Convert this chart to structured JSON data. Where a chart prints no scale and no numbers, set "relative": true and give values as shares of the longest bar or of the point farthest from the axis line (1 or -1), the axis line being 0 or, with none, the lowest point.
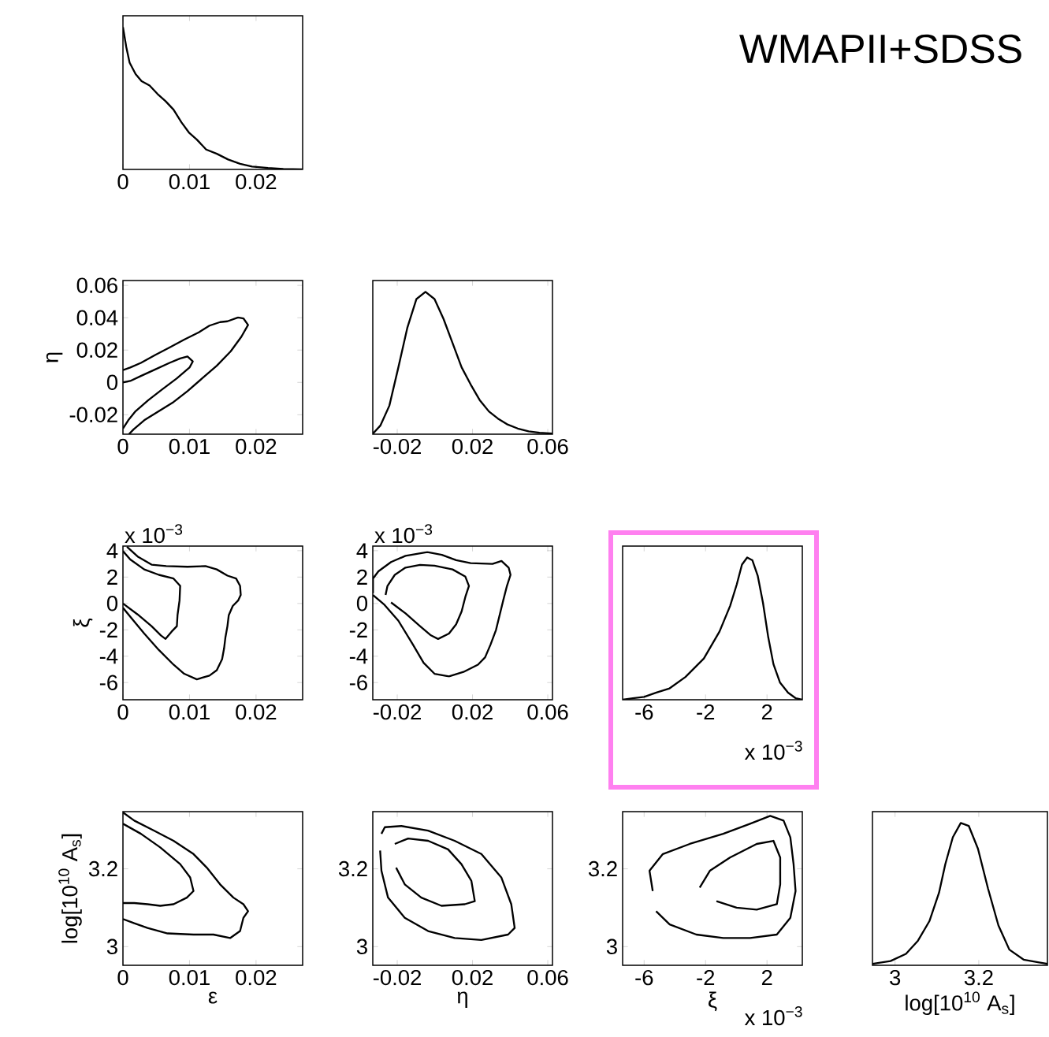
{
  "chart_data": [
    {
      "type": "line",
      "relative": true,
      "color": "#000000",
      "xlim": [
        0,
        0.027
      ],
      "xticks": [
        0,
        0.01,
        0.02
      ],
      "x": [
        0,
        0.0005,
        0.001,
        0.0019,
        0.0028,
        0.004,
        0.0052,
        0.0064,
        0.0076,
        0.0088,
        0.0099,
        0.0111,
        0.0125,
        0.0141,
        0.0158,
        0.0176,
        0.0194,
        0.0218,
        0.0241,
        0.027
      ],
      "values": [
        1,
        0.86,
        0.75,
        0.67,
        0.62,
        0.59,
        0.53,
        0.48,
        0.42,
        0.33,
        0.26,
        0.21,
        0.14,
        0.11,
        0.07,
        0.04,
        0.02,
        0.01,
        0.003,
        0
      ]
    },
    {
      "type": "other",
      "title": "WMAPII+SDSS"
    },
    {
      "type": "line",
      "ylabel": "η",
      "xlim": [
        0,
        0.027
      ],
      "ylim": [
        -0.032,
        0.063
      ],
      "xticks": [
        0,
        0.01,
        0.02
      ],
      "yticks": [
        -0.02,
        0,
        0.02,
        0.04,
        0.06
      ],
      "series": [
        {
          "color": "#000000",
          "x": [
            0,
            0.0011,
            0.0027,
            0.0049,
            0.007,
            0.0092,
            0.0114,
            0.013,
            0.0146,
            0.0157,
            0.0173,
            0.0181,
            0.0188,
            0.0178,
            0.0162,
            0.0141,
            0.0119,
            0.0097,
            0.0076,
            0.0054,
            0.0032,
            0.0016,
            0.0009
          ],
          "values": [
            0.0076,
            0.0092,
            0.0121,
            0.0171,
            0.0216,
            0.0265,
            0.031,
            0.0351,
            0.0373,
            0.0378,
            0.0402,
            0.0396,
            0.0355,
            0.0283,
            0.0193,
            0.0103,
            0.0025,
            -0.0054,
            -0.0121,
            -0.0178,
            -0.0234,
            -0.029,
            -0.032
          ]
        },
        {
          "color": "#000000",
          "x": [
            0,
            0.0011,
            0.0027,
            0.0049,
            0.007,
            0.0086,
            0.0097,
            0.0105,
            0.01,
            0.0081,
            0.0059,
            0.0038,
            0.0019,
            0.0008,
            0
          ],
          "values": [
            0,
            0.0009,
            0.004,
            0.0081,
            0.0121,
            0.0148,
            0.016,
            0.013,
            0.0092,
            0.0025,
            -0.0043,
            -0.011,
            -0.0178,
            -0.0234,
            -0.0285
          ]
        }
      ]
    },
    {
      "type": "line",
      "relative": true,
      "color": "#000000",
      "xlim": [
        -0.033,
        0.0625
      ],
      "xticks": [
        -0.02,
        0.02,
        0.06
      ],
      "x": [
        -0.0329,
        -0.029,
        -0.0242,
        -0.0194,
        -0.0146,
        -0.0098,
        -0.005,
        -0.0002,
        0.0046,
        0.0094,
        0.0142,
        0.019,
        0.0238,
        0.0287,
        0.0335,
        0.0383,
        0.044,
        0.0498,
        0.0556,
        0.0623
      ],
      "values": [
        0.005,
        0.06,
        0.2,
        0.47,
        0.75,
        0.95,
        1,
        0.95,
        0.81,
        0.64,
        0.47,
        0.35,
        0.24,
        0.16,
        0.11,
        0.07,
        0.04,
        0.02,
        0.01,
        0.005
      ]
    },
    {
      "type": "line",
      "ylabel": "ξ",
      "annotations": [
        "x 10$^{−3}$"
      ],
      "xlim": [
        0,
        0.027
      ],
      "ylim": [
        -7.3,
        4.35
      ],
      "xticks": [
        0,
        0.01,
        0.02
      ],
      "yticks": [
        -6,
        -4,
        -2,
        0,
        2,
        4
      ],
      "series": [
        {
          "color": "#000000",
          "x": [
            0.0006,
            0.0022,
            0.0043,
            0.0065,
            0.0097,
            0.0124,
            0.0141,
            0.0157,
            0.017,
            0.0176,
            0.0177,
            0.0173,
            0.0165,
            0.0159,
            0.0157,
            0.0154,
            0.0152,
            0.0149,
            0.0141,
            0.013,
            0.0111,
            0.0092,
            0.0076,
            0.0054,
            0.0032,
            0.0016,
            0
          ],
          "values": [
            4.3,
            3.56,
            2.94,
            2.83,
            2.78,
            2.83,
            2.58,
            2.11,
            1.89,
            1.33,
            0.64,
            0.22,
            -0.19,
            -0.89,
            -1.72,
            -2.56,
            -3.39,
            -4.22,
            -5.06,
            -5.47,
            -5.75,
            -5.33,
            -4.64,
            -3.53,
            -2.28,
            -1.31,
            -0.33
          ]
        },
        {
          "color": "#000000",
          "x": [
            0,
            0.0011,
            0.0032,
            0.0054,
            0.0076,
            0.0086,
            0.0085,
            0.0082,
            0.0081,
            0.0073,
            0.0064,
            0.0057,
            0.0043,
            0.0022,
            0
          ],
          "values": [
            3.97,
            3.33,
            2.58,
            2.17,
            1.89,
            1.33,
            0.22,
            -0.89,
            -1.72,
            -2.14,
            -2.69,
            -2.42,
            -1.72,
            -0.83,
            0
          ]
        }
      ]
    },
    {
      "type": "line",
      "annotations": [
        "x 10$^{−3}$"
      ],
      "xlim": [
        -0.033,
        0.0625
      ],
      "ylim": [
        -7.3,
        4.35
      ],
      "xticks": [
        -0.02,
        0.02,
        0.06
      ],
      "yticks": [
        -6,
        -4,
        -2,
        0,
        2,
        4
      ],
      "series": [
        {
          "color": "#000000",
          "x": [
            -0.0329,
            -0.0329,
            -0.03,
            -0.0233,
            -0.0156,
            -0.004,
            0.0037,
            0.0113,
            0.019,
            0.0306,
            0.0354,
            0.0392,
            0.0402,
            0.0383,
            0.0363,
            0.0344,
            0.0325,
            0.0296,
            0.0267,
            0.0229,
            0.0152,
            0.0075,
            -0.0002,
            -0.006,
            -0.0117,
            -0.0194,
            -0.0271,
            -0.0329
          ],
          "values": [
            0.78,
            1.89,
            2.44,
            3.14,
            3.61,
            3.89,
            3.69,
            3.28,
            3.06,
            3,
            3.22,
            2.72,
            2.17,
            1.33,
            0.22,
            -0.89,
            -2,
            -3.11,
            -4.08,
            -4.64,
            -5.19,
            -5.53,
            -5.33,
            -4.5,
            -3.11,
            -1.31,
            -0.06,
            0.64
          ]
        },
        {
          "color": "#000000",
          "x": [
            -0.0262,
            -0.0252,
            -0.0213,
            -0.0156,
            -0.0079,
            -0.0002,
            0.0094,
            0.0162,
            0.0181,
            0.0162,
            0.0142,
            0.0113,
            0.0075,
            0.0017,
            -0.0021,
            -0.0079,
            -0.0156,
            -0.0233
          ],
          "values": [
            0.64,
            1.33,
            2.17,
            2.72,
            2.92,
            2.86,
            2.58,
            2.03,
            1.33,
            0.5,
            -0.61,
            -1.58,
            -2.28,
            -2.69,
            -2.42,
            -1.72,
            -0.75,
            0.08
          ]
        }
      ]
    },
    {
      "type": "line",
      "relative": true,
      "color": "#000000",
      "annotations": [
        "x 10$^{−3}$"
      ],
      "xlim": [
        -7.4,
        4.3
      ],
      "xticks": [
        -6,
        -2,
        2
      ],
      "x": [
        -7.4,
        -6.74,
        -6,
        -5.2,
        -4.34,
        -3.31,
        -2.11,
        -1.09,
        -0.4,
        0.03,
        0.37,
        0.71,
        1.05,
        1.4,
        1.74,
        2.08,
        2.42,
        2.85,
        3.37,
        3.88,
        4.3
      ],
      "values": [
        0,
        0.01,
        0.02,
        0.05,
        0.08,
        0.16,
        0.29,
        0.48,
        0.66,
        0.81,
        0.95,
        1,
        0.98,
        0.87,
        0.68,
        0.44,
        0.25,
        0.12,
        0.05,
        0.01,
        0
      ]
    },
    {
      "type": "line",
      "xlabel": "ε",
      "ylabel": "log[10$^{10}$ A$_{s}$]",
      "xlim": [
        0,
        0.027
      ],
      "ylim": [
        2.952,
        3.347
      ],
      "xticks": [
        0,
        0.01,
        0.02
      ],
      "yticks": [
        3,
        3.2
      ],
      "series": [
        {
          "color": "#000000",
          "x": [
            0,
            0.0017,
            0.0047,
            0.0076,
            0.0106,
            0.0126,
            0.0146,
            0.0166,
            0.0181,
            0.0188,
            0.0181,
            0.0176,
            0.0161,
            0.0136,
            0.0106,
            0.0067,
            0.0037,
            0.0017,
            0
          ],
          "values": [
            3.345,
            3.324,
            3.298,
            3.272,
            3.238,
            3.203,
            3.16,
            3.126,
            3.109,
            3.091,
            3.074,
            3.04,
            3.022,
            3.031,
            3.031,
            3.034,
            3.048,
            3.06,
            3.071
          ]
        },
        {
          "color": "#000000",
          "x": [
            0,
            0.0027,
            0.0056,
            0.0086,
            0.0101,
            0.0106,
            0.0096,
            0.0076,
            0.0056,
            0.0037,
            0.0017,
            0
          ],
          "values": [
            3.316,
            3.29,
            3.255,
            3.212,
            3.178,
            3.143,
            3.126,
            3.109,
            3.105,
            3.109,
            3.112,
            3.112
          ]
        }
      ]
    },
    {
      "type": "line",
      "xlabel": "η",
      "xlim": [
        -0.033,
        0.0625
      ],
      "ylim": [
        2.952,
        3.347
      ],
      "xticks": [
        -0.02,
        0.02,
        0.06
      ],
      "yticks": [
        3,
        3.2
      ],
      "series": [
        {
          "color": "#000000",
          "x": [
            -0.0284,
            -0.0266,
            -0.0178,
            -0.0036,
            0.0105,
            0.0247,
            0.0353,
            0.0406,
            0.0424,
            0.0389,
            0.0247,
            0.0105,
            -0.0036,
            -0.016,
            -0.0249,
            -0.0284,
            -0.0291
          ],
          "values": [
            3.29,
            3.307,
            3.31,
            3.298,
            3.272,
            3.238,
            3.178,
            3.109,
            3.048,
            3.031,
            3.017,
            3.022,
            3.04,
            3.074,
            3.126,
            3.195,
            3.247
          ]
        },
        {
          "color": "#000000",
          "x": [
            -0.0213,
            -0.0142,
            -0.0036,
            0.007,
            0.0141,
            0.0194,
            0.0212,
            0.0159,
            0.0035,
            -0.0072,
            -0.016,
            -0.0206
          ],
          "values": [
            3.264,
            3.278,
            3.272,
            3.25,
            3.212,
            3.169,
            3.117,
            3.109,
            3.105,
            3.126,
            3.16,
            3.203
          ]
        }
      ]
    },
    {
      "type": "line",
      "xlabel": "ξ",
      "annotations": [
        "x 10$^{−3}$"
      ],
      "xlim": [
        -7.4,
        4.3
      ],
      "ylim": [
        2.952,
        3.347
      ],
      "xticks": [
        -6,
        -2,
        2
      ],
      "yticks": [
        3,
        3.2
      ],
      "series": [
        {
          "color": "#000000",
          "x": [
            -5.44,
            -5.65,
            -4.78,
            -3.03,
            -0.85,
            0.9,
            2.21,
            3.08,
            3.52,
            3.73,
            3.86,
            3.52,
            2.64,
            0.9,
            -0.85,
            -2.6,
            -4.34,
            -5.22
          ],
          "values": [
            3.143,
            3.195,
            3.238,
            3.264,
            3.29,
            3.316,
            3.336,
            3.324,
            3.281,
            3.212,
            3.143,
            3.074,
            3.031,
            3.022,
            3.022,
            3.031,
            3.057,
            3.091
          ]
        },
        {
          "color": "#000000",
          "x": [
            -2.38,
            -1.72,
            -0.41,
            1.33,
            2.42,
            2.86,
            2.86,
            2.64,
            1.33,
            0.02,
            -1.29
          ],
          "values": [
            3.152,
            3.195,
            3.229,
            3.264,
            3.272,
            3.229,
            3.16,
            3.109,
            3.095,
            3.1,
            3.117
          ]
        }
      ]
    },
    {
      "type": "line",
      "relative": true,
      "color": "#000000",
      "xlabel": "log[10$^{10}$ A$_{s}$]",
      "xlim": [
        2.946,
        3.364
      ],
      "xticks": [
        3,
        3.2
      ],
      "x": [
        2.946,
        2.989,
        3.026,
        3.054,
        3.082,
        3.105,
        3.12,
        3.138,
        3.157,
        3.176,
        3.198,
        3.222,
        3.247,
        3.273,
        3.307,
        3.344,
        3.364
      ],
      "values": [
        0.01,
        0.03,
        0.08,
        0.17,
        0.31,
        0.51,
        0.71,
        0.9,
        1,
        0.98,
        0.82,
        0.54,
        0.28,
        0.11,
        0.04,
        0.02,
        0.01
      ]
    }
  ]
}
